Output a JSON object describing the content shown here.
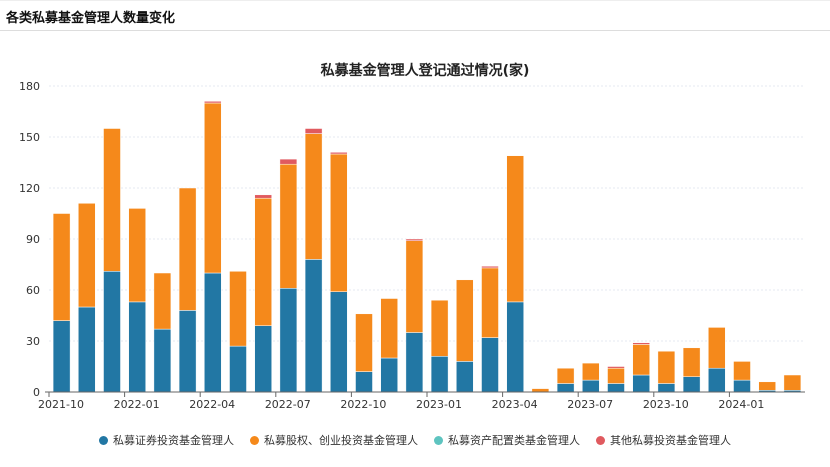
{
  "header": {
    "title": "各类私募基金管理人数量变化"
  },
  "chart_data": {
    "type": "bar",
    "stacked": true,
    "title": "私募基金管理人登记通过情况(家)",
    "xlabel": "",
    "ylabel": "",
    "ylim": [
      0,
      180
    ],
    "yticks": [
      0,
      30,
      60,
      90,
      120,
      150,
      180
    ],
    "grid": true,
    "legend_position": "bottom",
    "categories": [
      "2021-10",
      "2021-11",
      "2021-12",
      "2022-01",
      "2022-02",
      "2022-03",
      "2022-04",
      "2022-05",
      "2022-06",
      "2022-07",
      "2022-08",
      "2022-09",
      "2022-10",
      "2022-11",
      "2022-12",
      "2023-01",
      "2023-02",
      "2023-03",
      "2023-04",
      "2023-05",
      "2023-06",
      "2023-07",
      "2023-08",
      "2023-09",
      "2023-10",
      "2023-11",
      "2023-12",
      "2024-01",
      "2024-02",
      "2024-03"
    ],
    "xtick_labels": [
      "2021-10",
      "2022-01",
      "2022-04",
      "2022-07",
      "2022-10",
      "2023-01",
      "2023-04",
      "2023-07",
      "2023-10",
      "2024-01"
    ],
    "series": [
      {
        "name": "私募证券投资基金管理人",
        "color": "#2277a4",
        "values": [
          42,
          50,
          71,
          53,
          37,
          48,
          70,
          27,
          39,
          61,
          78,
          59,
          12,
          20,
          35,
          21,
          18,
          32,
          53,
          0,
          5,
          7,
          5,
          10,
          5,
          9,
          14,
          7,
          1,
          1
        ]
      },
      {
        "name": "私募股权、创业投资基金管理人",
        "color": "#f5891b",
        "values": [
          63,
          61,
          84,
          55,
          33,
          72,
          100,
          44,
          75,
          73,
          74,
          81,
          34,
          35,
          54,
          33,
          48,
          41,
          86,
          2,
          9,
          10,
          9,
          18,
          19,
          17,
          24,
          11,
          5,
          9
        ]
      },
      {
        "name": "私募资产配置类基金管理人",
        "color": "#5ec4c0",
        "values": [
          0,
          0,
          0,
          0,
          0,
          0,
          0,
          0,
          0,
          0,
          0,
          0,
          0,
          0,
          0,
          0,
          0,
          0,
          0,
          0,
          0,
          0,
          0,
          0,
          0,
          0,
          0,
          0,
          0,
          0
        ]
      },
      {
        "name": "其他私募投资基金管理人",
        "color": "#e05a5f",
        "values": [
          0,
          0,
          0,
          0,
          0,
          0,
          1,
          0,
          2,
          3,
          3,
          1,
          0,
          0,
          1,
          0,
          0,
          1,
          0,
          0,
          0,
          0,
          1,
          1,
          0,
          0,
          0,
          0,
          0,
          0
        ]
      }
    ]
  }
}
